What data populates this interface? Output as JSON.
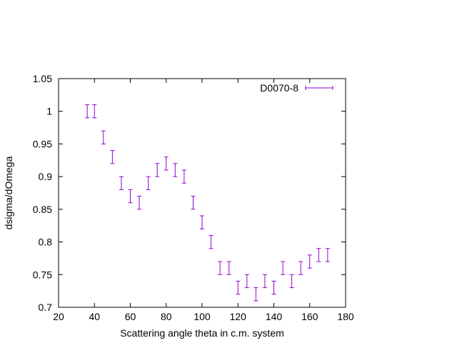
{
  "chart_data": {
    "type": "scatter",
    "xlabel": "Scattering angle theta in c.m. system",
    "ylabel": "dsigma/dOmega",
    "xlim": [
      20,
      180
    ],
    "ylim": [
      0.7,
      1.05
    ],
    "x_ticks": [
      "20",
      "40",
      "60",
      "80",
      "100",
      "120",
      "140",
      "160",
      "180"
    ],
    "y_ticks": [
      "0.7",
      "0.75",
      "0.8",
      "0.85",
      "0.9",
      "0.95",
      "1",
      "1.05"
    ],
    "grid": false,
    "legend_position": "top-right",
    "series": [
      {
        "name": "D0070-8",
        "color": "#9400d3",
        "error_bars": "vertical",
        "x": [
          36,
          40,
          45,
          50,
          55,
          60,
          65,
          70,
          75,
          80,
          85,
          90,
          95,
          100,
          105,
          110,
          115,
          120,
          125,
          130,
          135,
          140,
          145,
          150,
          155,
          160,
          165,
          170
        ],
        "y": [
          1.0,
          1.0,
          0.96,
          0.93,
          0.89,
          0.87,
          0.86,
          0.89,
          0.91,
          0.92,
          0.91,
          0.9,
          0.86,
          0.83,
          0.8,
          0.76,
          0.76,
          0.73,
          0.74,
          0.72,
          0.74,
          0.73,
          0.76,
          0.74,
          0.76,
          0.77,
          0.78,
          0.78
        ],
        "err": [
          0.01,
          0.01,
          0.01,
          0.01,
          0.01,
          0.01,
          0.01,
          0.01,
          0.01,
          0.01,
          0.01,
          0.01,
          0.01,
          0.01,
          0.01,
          0.01,
          0.01,
          0.01,
          0.01,
          0.01,
          0.01,
          0.01,
          0.01,
          0.01,
          0.01,
          0.01,
          0.01,
          0.01
        ]
      }
    ]
  }
}
